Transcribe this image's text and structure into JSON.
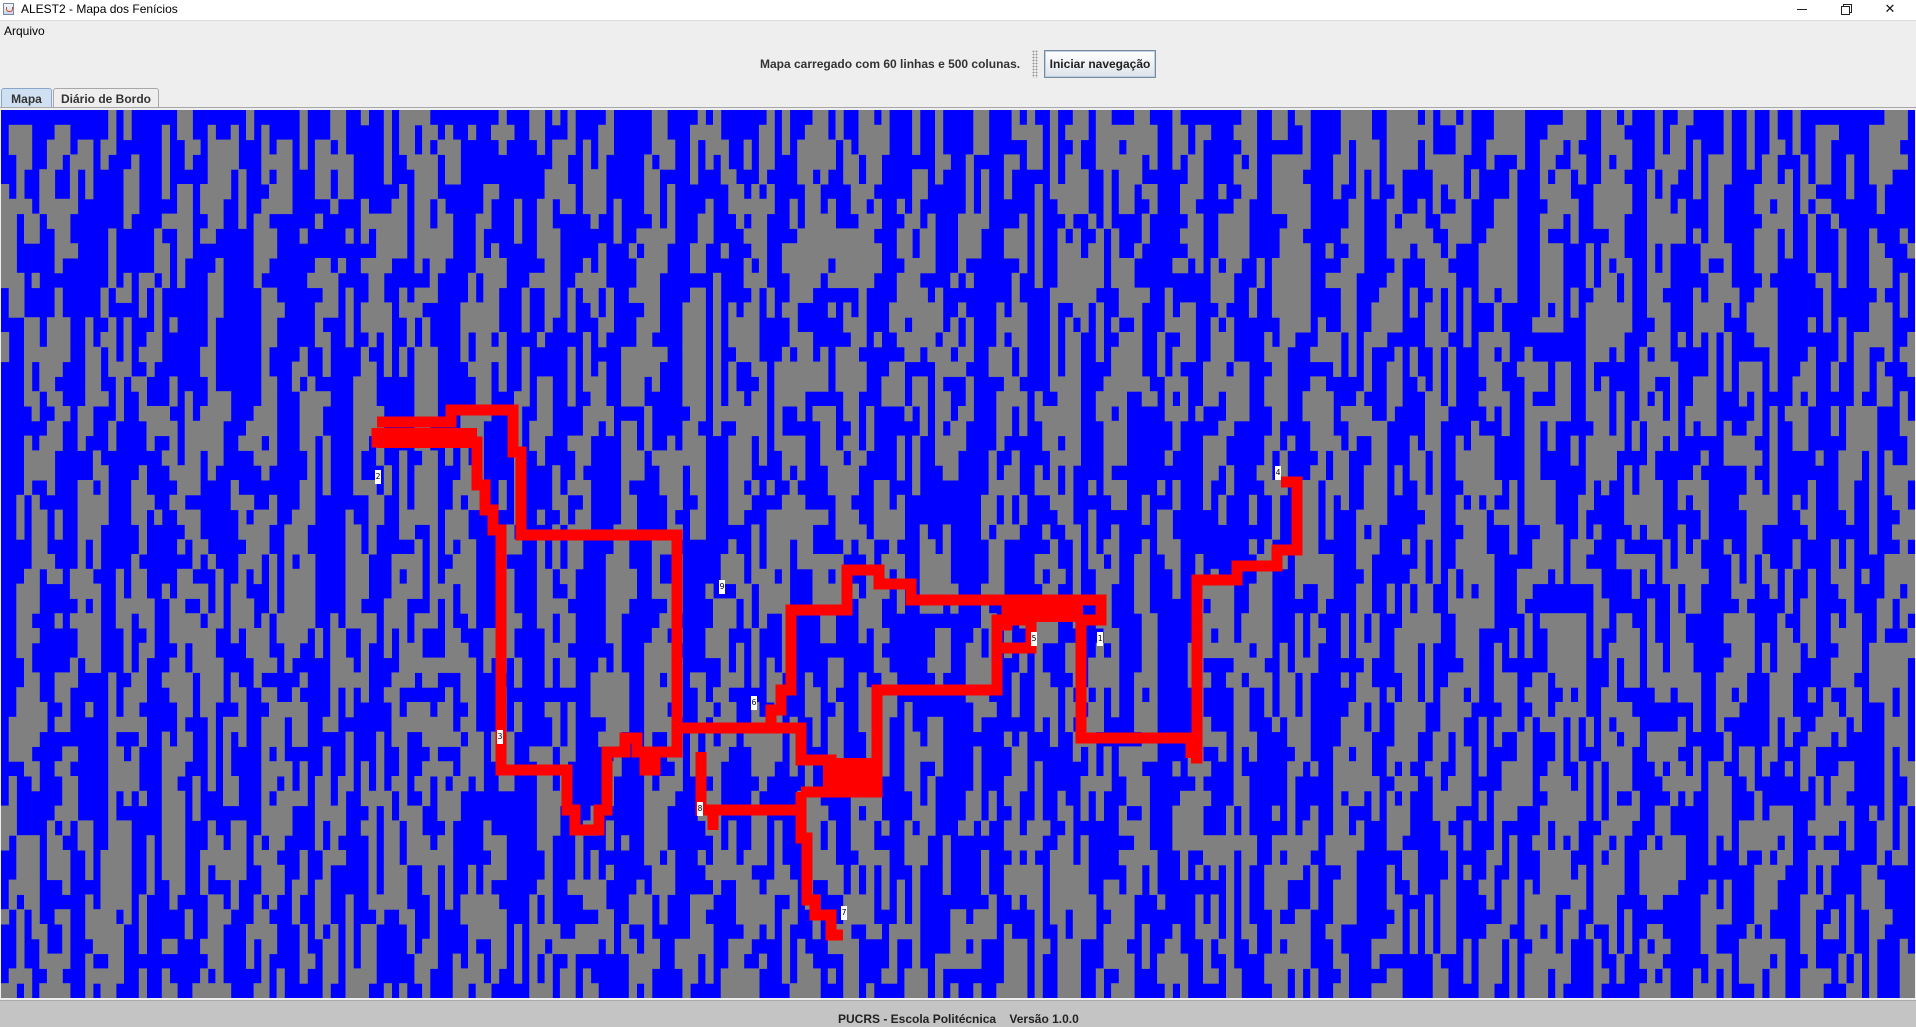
{
  "window": {
    "title": "ALEST2 - Mapa dos Fenícios"
  },
  "menu": {
    "items": [
      "Arquivo"
    ]
  },
  "toolbar": {
    "status_text": "Mapa carregado com 60 linhas e 500 colunas.",
    "start_button_label": "Iniciar navegação"
  },
  "tabs": [
    {
      "label": "Mapa",
      "selected": true
    },
    {
      "label": "Diário de Bordo",
      "selected": false
    }
  ],
  "map": {
    "rows": 60,
    "columns": 500,
    "colors": {
      "water": "#0000ff",
      "land": "#808080",
      "route": "#ff0000",
      "marker": "#ffffff"
    },
    "ports": [
      {
        "label": "1"
      },
      {
        "label": "2"
      },
      {
        "label": "3"
      },
      {
        "label": "4"
      },
      {
        "label": "5"
      },
      {
        "label": "6"
      },
      {
        "label": "7"
      },
      {
        "label": "8"
      },
      {
        "label": "9"
      }
    ]
  },
  "footer": {
    "institution": "PUCRS - Escola Politécnica",
    "version": "Versão 1.0.0"
  }
}
